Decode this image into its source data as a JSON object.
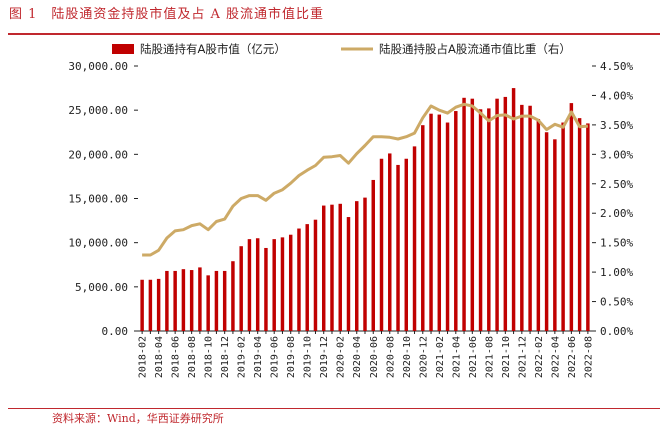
{
  "figure": {
    "number": "图 1",
    "title": "陆股通资金持股市值及占 A 股流通市值比重",
    "source": "资料来源：Wind，华西证券研究所"
  },
  "colors": {
    "bar": "#c00000",
    "line": "#cdaa66",
    "accent": "#c0282e"
  },
  "chart_data": {
    "type": "bar+line",
    "legend_position": "top",
    "grid": false,
    "x": [
      "2018-02",
      "2018-03",
      "2018-04",
      "2018-05",
      "2018-06",
      "2018-07",
      "2018-08",
      "2018-09",
      "2018-10",
      "2018-11",
      "2018-12",
      "2019-01",
      "2019-02",
      "2019-03",
      "2019-04",
      "2019-05",
      "2019-06",
      "2019-07",
      "2019-08",
      "2019-09",
      "2019-10",
      "2019-11",
      "2019-12",
      "2020-01",
      "2020-02",
      "2020-03",
      "2020-04",
      "2020-05",
      "2020-06",
      "2020-07",
      "2020-08",
      "2020-09",
      "2020-10",
      "2020-11",
      "2020-12",
      "2021-01",
      "2021-02",
      "2021-03",
      "2021-04",
      "2021-05",
      "2021-06",
      "2021-07",
      "2021-08",
      "2021-09",
      "2021-10",
      "2021-11",
      "2021-12",
      "2022-01",
      "2022-02",
      "2022-03",
      "2022-04",
      "2022-05",
      "2022-06",
      "2022-07",
      "2022-08"
    ],
    "x_tick_labels": [
      "2018-02",
      "2018-04",
      "2018-06",
      "2018-08",
      "2018-10",
      "2018-12",
      "2019-02",
      "2019-04",
      "2019-06",
      "2019-08",
      "2019-10",
      "2019-12",
      "2020-02",
      "2020-04",
      "2020-06",
      "2020-08",
      "2020-10",
      "2020-12",
      "2021-02",
      "2021-04",
      "2021-06",
      "2021-08",
      "2021-10",
      "2021-12",
      "2022-02",
      "2022-04",
      "2022-06",
      "2022-08"
    ],
    "y_left": {
      "ylim": [
        0,
        30000
      ],
      "ticks": [
        "0.00",
        "5,000.00",
        "10,000.00",
        "15,000.00",
        "20,000.00",
        "25,000.00",
        "30,000.00"
      ]
    },
    "y_right": {
      "ylim": [
        0,
        4.5
      ],
      "ticks": [
        "0.00%",
        "0.50%",
        "1.00%",
        "1.50%",
        "2.00%",
        "2.50%",
        "3.00%",
        "3.50%",
        "4.00%",
        "4.50%"
      ]
    },
    "series": [
      {
        "name": "陆股通持有A股市值（亿元）",
        "type": "bar",
        "axis": "left",
        "values": [
          5800,
          5800,
          5900,
          6800,
          6800,
          7000,
          6900,
          7200,
          6300,
          6800,
          6800,
          7900,
          9600,
          10400,
          10500,
          9400,
          10400,
          10600,
          10900,
          11600,
          12100,
          12600,
          14200,
          14300,
          14400,
          12900,
          14700,
          15100,
          17100,
          19500,
          20100,
          18800,
          19500,
          20900,
          23300,
          24600,
          24500,
          23600,
          24900,
          26400,
          26300,
          25100,
          25200,
          26300,
          26500,
          27500,
          25600,
          25500,
          24000,
          22500,
          21700,
          23600,
          25800,
          24100,
          23500
        ]
      },
      {
        "name": "陆股通持股占A股流通市值比重（右）",
        "type": "line",
        "axis": "right",
        "values": [
          1.29,
          1.29,
          1.37,
          1.58,
          1.7,
          1.72,
          1.79,
          1.82,
          1.72,
          1.86,
          1.9,
          2.12,
          2.25,
          2.3,
          2.3,
          2.22,
          2.34,
          2.4,
          2.51,
          2.64,
          2.73,
          2.81,
          2.95,
          2.96,
          2.98,
          2.85,
          3.01,
          3.15,
          3.3,
          3.3,
          3.29,
          3.26,
          3.3,
          3.36,
          3.62,
          3.82,
          3.75,
          3.7,
          3.8,
          3.85,
          3.82,
          3.7,
          3.57,
          3.66,
          3.67,
          3.6,
          3.65,
          3.65,
          3.58,
          3.42,
          3.51,
          3.46,
          3.72,
          3.47,
          3.48
        ]
      }
    ]
  }
}
